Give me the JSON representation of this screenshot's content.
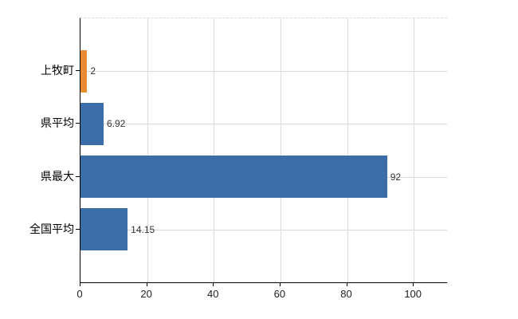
{
  "chart_data": {
    "type": "bar",
    "orientation": "horizontal",
    "title": "",
    "xlabel": "",
    "ylabel": "",
    "categories": [
      "上牧町",
      "県平均",
      "県最大",
      "全国平均"
    ],
    "values": [
      2,
      6.92,
      92,
      14.15
    ],
    "value_labels": [
      "2",
      "6.92",
      "92",
      "14.15"
    ],
    "bar_colors": [
      "#E98B30",
      "#3B6DA9",
      "#3B6DA9",
      "#3B6DA9"
    ],
    "x_ticks": [
      0,
      20,
      40,
      60,
      80,
      100
    ],
    "x_tick_labels": [
      "0",
      "20",
      "40",
      "60",
      "80",
      "100"
    ],
    "xlim": [
      0,
      110
    ],
    "grid": "on",
    "legend": "none",
    "accent_blue": "#3B6DA9",
    "accent_orange": "#E98B30",
    "grid_color": "#d9d9d9",
    "axis_color": "#000000"
  }
}
